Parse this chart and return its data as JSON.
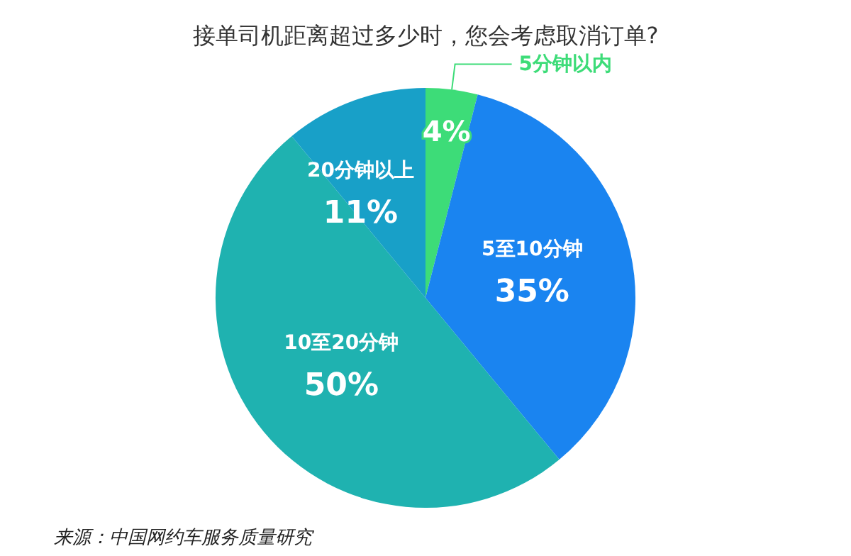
{
  "chart_data": {
    "type": "pie",
    "title": "接单司机距离超过多少时，您会考虑取消订单?",
    "categories": [
      "5分钟以内",
      "5至10分钟",
      "10至20分钟",
      "20分钟以上"
    ],
    "values": [
      4,
      35,
      50,
      11
    ],
    "value_labels": [
      "4%",
      "35%",
      "50%",
      "11%"
    ],
    "colors": [
      "#3ddc78",
      "#1a84f0",
      "#1fb2b0",
      "#18a0c8"
    ],
    "legend": false,
    "annotations": [
      "来源：中国网约车服务质量研究"
    ]
  }
}
